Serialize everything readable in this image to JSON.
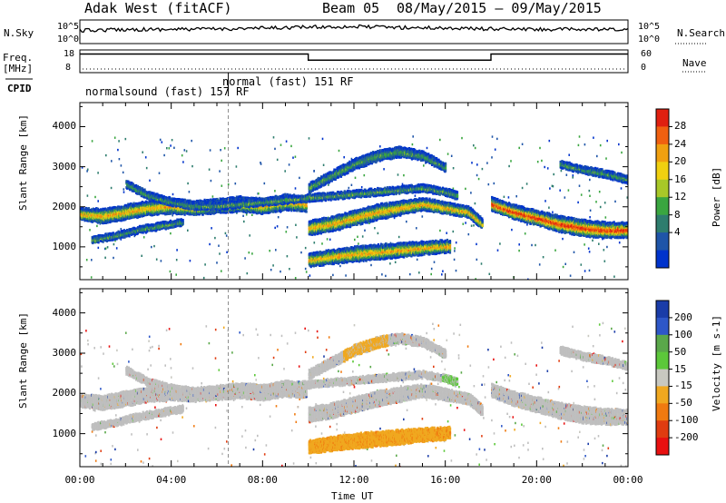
{
  "header": {
    "station": "Adak West (fitACF)",
    "beam": "Beam 05",
    "date_range": "08/May/2015 – 09/May/2015"
  },
  "colors": {
    "power": [
      "#0033cc",
      "#1f55a8",
      "#2e7d6e",
      "#3aa640",
      "#a8c828",
      "#f0d010",
      "#f0a010",
      "#f06010",
      "#e02010"
    ],
    "velocity": [
      "#1a3ca8",
      "#2e57c8",
      "#5aa84a",
      "#5cc83a",
      "#c8c8c0",
      "#f0a820",
      "#f07a10",
      "#e03c10",
      "#e81010"
    ],
    "ground_scatter": "#bfbfbf"
  },
  "chart_data": [
    {
      "type": "line",
      "panel": "sky-noise",
      "left_label": "N.Sky",
      "right_label": "N.Search",
      "left_ticks": [
        "10^5",
        "10^0"
      ],
      "right_ticks": [
        "10^5",
        "10^0"
      ],
      "x": [
        0,
        2,
        4,
        6,
        8,
        10,
        12,
        14,
        16,
        18,
        20,
        22,
        24
      ],
      "sky_level": [
        0.55,
        0.6,
        0.6,
        0.62,
        0.65,
        0.7,
        0.72,
        0.68,
        0.66,
        0.62,
        0.6,
        0.6,
        0.58
      ]
    },
    {
      "type": "line",
      "panel": "frequency",
      "left_label": "Freq. [MHz]",
      "right_label": "Nave",
      "left_ticks": [
        "18",
        "8"
      ],
      "right_ticks": [
        "60",
        "0"
      ],
      "steps": [
        {
          "from": 0,
          "to": 10,
          "level": 0.82
        },
        {
          "from": 10,
          "to": 18,
          "level": 0.55
        },
        {
          "from": 18,
          "to": 24,
          "level": 0.82
        }
      ]
    },
    {
      "type": "table",
      "panel": "cpid",
      "label": "CPID",
      "segments": [
        {
          "from": 0,
          "to": 6.5,
          "text": "normalsound (fast) 157 RF"
        },
        {
          "from": 6.5,
          "to": 24,
          "text": "normal (fast) 151 RF"
        }
      ]
    },
    {
      "type": "heatmap",
      "panel": "power",
      "ylabel": "Slant Range [km]",
      "yticks": [
        1000,
        2000,
        3000,
        4000
      ],
      "ylim": [
        180,
        4600
      ],
      "xlim": [
        0,
        24
      ],
      "colorbar_label": "Power [dB]",
      "colorbar_ticks": [
        "28",
        "24",
        "20",
        "16",
        "12",
        "8",
        "4"
      ],
      "bands": [
        {
          "x": [
            0,
            1,
            2,
            3,
            4,
            5,
            6,
            7,
            8,
            9,
            9.9
          ],
          "y": [
            1850,
            1800,
            1900,
            2000,
            2050,
            2000,
            2050,
            2100,
            2050,
            2150,
            2100
          ],
          "w": [
            260,
            300,
            320,
            300,
            320,
            300,
            300,
            320,
            330,
            340,
            320
          ]
        },
        {
          "x": [
            10,
            11,
            12,
            13,
            14,
            15,
            16,
            17,
            17.6
          ],
          "y": [
            1500,
            1600,
            1750,
            1900,
            2000,
            2100,
            2000,
            1900,
            1600
          ],
          "w": [
            300,
            320,
            320,
            330,
            300,
            260,
            240,
            220,
            200
          ]
        },
        {
          "x": [
            10,
            11,
            12,
            13,
            14,
            15,
            16.2
          ],
          "y": [
            700,
            780,
            850,
            900,
            950,
            1000,
            1050
          ],
          "w": [
            280,
            300,
            320,
            320,
            300,
            280,
            260
          ]
        },
        {
          "x": [
            18,
            19,
            20,
            21,
            22,
            23,
            24
          ],
          "y": [
            2100,
            1900,
            1750,
            1600,
            1500,
            1450,
            1450
          ],
          "w": [
            280,
            300,
            320,
            340,
            360,
            340,
            320
          ]
        },
        {
          "x": [
            10,
            11,
            12,
            13,
            14,
            15,
            16
          ],
          "y": [
            2500,
            2800,
            3100,
            3300,
            3400,
            3300,
            3000
          ],
          "w": [
            180,
            200,
            220,
            220,
            200,
            180,
            160
          ]
        },
        {
          "x": [
            0.5,
            1.5,
            2.5,
            3.5,
            4.5
          ],
          "y": [
            1200,
            1300,
            1450,
            1550,
            1650
          ],
          "w": [
            120,
            120,
            130,
            130,
            120
          ]
        },
        {
          "x": [
            2,
            3,
            4,
            5,
            6,
            7,
            8,
            9,
            10,
            11,
            12,
            13,
            14,
            15,
            16,
            16.5
          ],
          "y": [
            2600,
            2300,
            2150,
            2050,
            2050,
            2100,
            2150,
            2200,
            2250,
            2300,
            2350,
            2400,
            2450,
            2500,
            2400,
            2300
          ],
          "w": [
            140,
            140,
            140,
            140,
            130,
            130,
            130,
            130,
            130,
            130,
            130,
            130,
            130,
            130,
            130,
            130
          ]
        },
        {
          "x": [
            21,
            22,
            23,
            24
          ],
          "y": [
            3100,
            2950,
            2850,
            2700
          ],
          "w": [
            130,
            140,
            140,
            140
          ]
        }
      ]
    },
    {
      "type": "heatmap",
      "panel": "velocity",
      "ylabel": "Slant Range [km]",
      "yticks": [
        1000,
        2000,
        3000,
        4000
      ],
      "ylim": [
        180,
        4600
      ],
      "xlim": [
        0,
        24
      ],
      "xticks": [
        "00:00",
        "04:00",
        "08:00",
        "12:00",
        "16:00",
        "20:00",
        "00:00"
      ],
      "xlabel": "Time UT",
      "colorbar_label": "Velocity [m s-1]",
      "colorbar_ticks": [
        "200",
        "100",
        "50",
        "15",
        "-15",
        "-50",
        "-100",
        "-200"
      ]
    }
  ]
}
